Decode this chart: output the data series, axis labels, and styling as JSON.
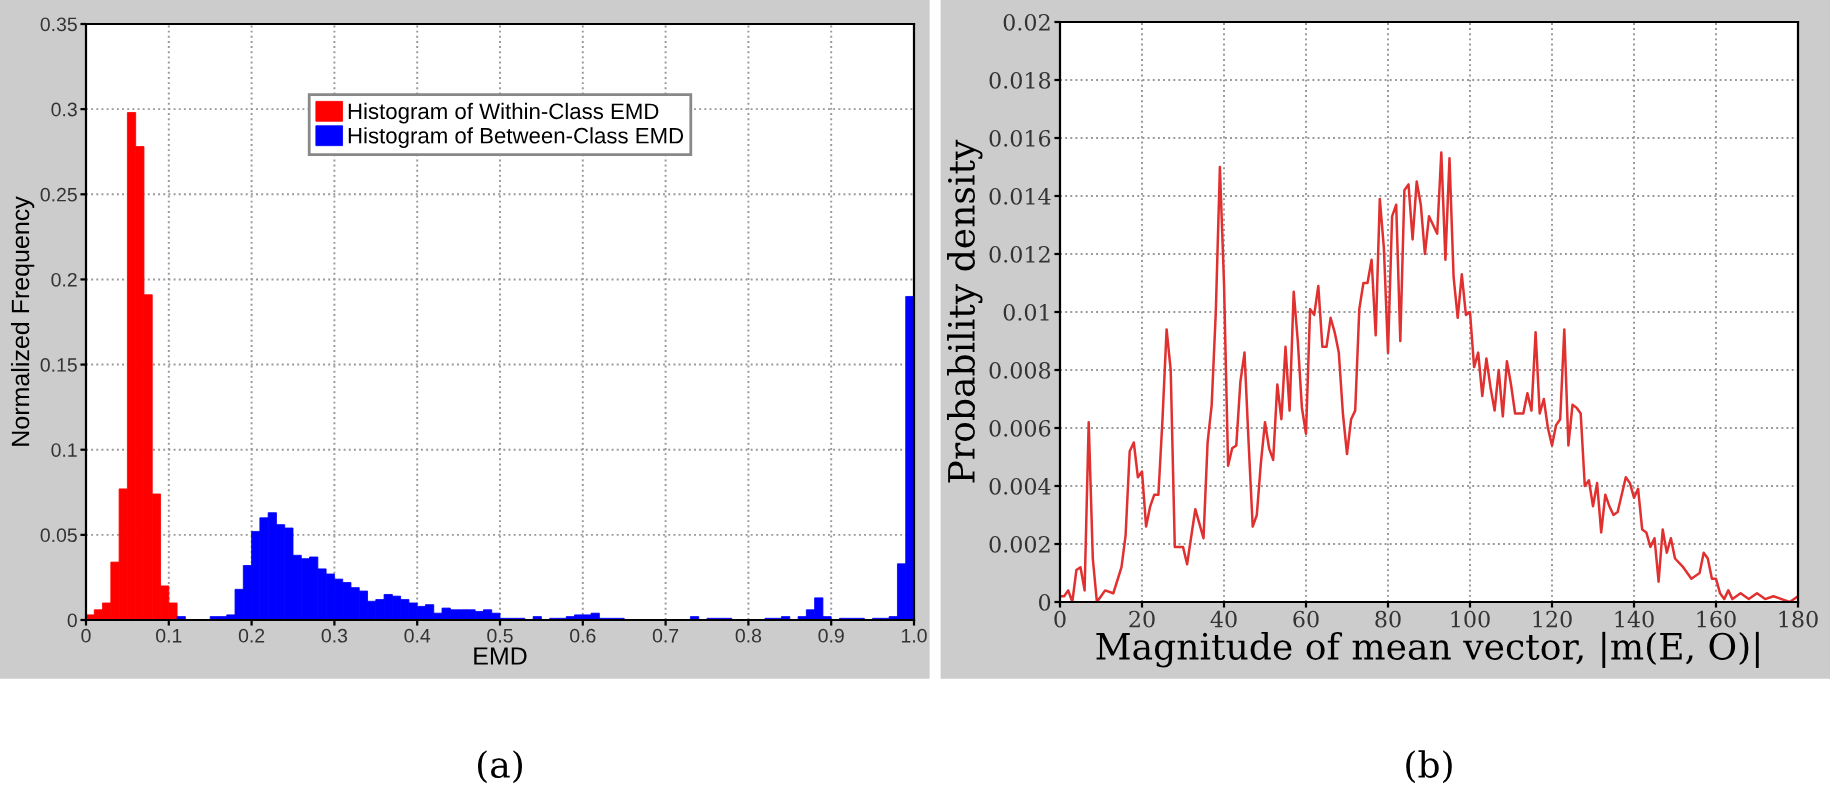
{
  "chart_data": [
    {
      "type": "histogram",
      "xlabel": "EMD",
      "ylabel": "Normalized Frequency",
      "annotations": [
        "(a)"
      ],
      "bins": [
        0,
        0.01,
        0.02,
        0.03,
        0.04,
        0.05,
        0.06,
        0.07,
        0.08,
        0.09,
        0.1,
        0.11,
        0.12,
        0.13,
        0.14,
        0.15,
        0.16,
        0.17,
        0.18,
        0.19,
        0.2,
        0.21,
        0.22,
        0.23,
        0.24,
        0.25,
        0.26,
        0.27,
        0.28,
        0.29,
        0.3,
        0.31,
        0.32,
        0.33,
        0.34,
        0.35,
        0.36,
        0.37,
        0.38,
        0.39,
        0.4,
        0.41,
        0.42,
        0.43,
        0.44,
        0.45,
        0.46,
        0.47,
        0.48,
        0.49,
        0.5,
        0.51,
        0.52,
        0.53,
        0.54,
        0.55,
        0.56,
        0.57,
        0.58,
        0.59,
        0.6,
        0.61,
        0.62,
        0.63,
        0.64,
        0.65,
        0.66,
        0.67,
        0.68,
        0.69,
        0.7,
        0.71,
        0.72,
        0.73,
        0.74,
        0.75,
        0.76,
        0.77,
        0.78,
        0.79,
        0.8,
        0.81,
        0.82,
        0.83,
        0.84,
        0.85,
        0.86,
        0.87,
        0.88,
        0.89,
        0.9,
        0.91,
        0.92,
        0.93,
        0.94,
        0.95,
        0.96,
        0.97,
        0.98,
        0.99,
        1.0
      ],
      "series": [
        {
          "name": "Histogram of Within-Class EMD",
          "color": "#ff0000",
          "values": [
            0.003,
            0.006,
            0.01,
            0.034,
            0.077,
            0.298,
            0.278,
            0.191,
            0.074,
            0.02,
            0.01,
            0,
            0,
            0,
            0,
            0,
            0,
            0,
            0,
            0,
            0,
            0,
            0,
            0,
            0,
            0,
            0,
            0,
            0,
            0,
            0,
            0,
            0,
            0,
            0,
            0,
            0,
            0,
            0,
            0,
            0,
            0,
            0,
            0,
            0,
            0,
            0,
            0,
            0,
            0,
            0,
            0,
            0,
            0,
            0,
            0,
            0,
            0,
            0,
            0,
            0,
            0,
            0,
            0,
            0,
            0,
            0,
            0,
            0,
            0,
            0,
            0,
            0,
            0,
            0,
            0,
            0,
            0,
            0,
            0,
            0,
            0,
            0,
            0,
            0,
            0,
            0,
            0,
            0,
            0,
            0,
            0,
            0,
            0,
            0,
            0,
            0,
            0,
            0,
            0
          ]
        },
        {
          "name": "Histogram of Between-Class EMD",
          "color": "#0000ff",
          "values": [
            0,
            0,
            0,
            0,
            0,
            0,
            null,
            null,
            null,
            null,
            null,
            0.002,
            0,
            0,
            0,
            0.002,
            0.002,
            0.003,
            0.018,
            0.032,
            0.052,
            0.06,
            0.063,
            0.056,
            0.054,
            0.038,
            0.036,
            0.037,
            0.03,
            0.027,
            0.024,
            0.022,
            0.019,
            0.017,
            0.011,
            0.012,
            0.015,
            0.014,
            0.012,
            0.01,
            0.008,
            0.009,
            0.004,
            0.007,
            0.006,
            0.006,
            0.006,
            0.005,
            0.006,
            0.004,
            0.001,
            0.001,
            0.001,
            0,
            0.002,
            0,
            0.001,
            0.001,
            0.002,
            0.003,
            0.003,
            0.004,
            0.001,
            0.001,
            0.001,
            0,
            0,
            0,
            0,
            0,
            0,
            0,
            0,
            0.002,
            0,
            0.001,
            0.001,
            0.001,
            0,
            0,
            0,
            0,
            0.001,
            0.001,
            0.002,
            0,
            0.002,
            0.006,
            0.013,
            0.002,
            0,
            0.001,
            0.001,
            0.001,
            0,
            0.001,
            0.001,
            0.002,
            0.033,
            0.19
          ]
        }
      ],
      "xlim": [
        0,
        1
      ],
      "ylim": [
        0,
        0.35
      ],
      "xticks": [
        0,
        0.1,
        0.2,
        0.3,
        0.4,
        0.5,
        0.6,
        0.7,
        0.8,
        0.9,
        {
          "value": 1,
          "label": "1.0"
        }
      ],
      "yticks": [
        0,
        0.05,
        0.1,
        0.15,
        0.2,
        0.25,
        0.3,
        0.35
      ],
      "grid": true,
      "legend": "top"
    },
    {
      "type": "line",
      "xlabel": "Magnitude of mean vector, |m(E, O)|",
      "ylabel": "Probability density",
      "annotations": [
        "(b)"
      ],
      "x": [
        0,
        1,
        2,
        3,
        4,
        5,
        6,
        7,
        8,
        9,
        10,
        11,
        13,
        15,
        16,
        17,
        18,
        19,
        20,
        21,
        22,
        23,
        24,
        25,
        26,
        27,
        28,
        30,
        31,
        33,
        35,
        36,
        37,
        38,
        39,
        40,
        41,
        42,
        43,
        44,
        45,
        46,
        47,
        48,
        49,
        50,
        51,
        52,
        53,
        54,
        55,
        56,
        57,
        58,
        59,
        60,
        61,
        62,
        63,
        64,
        65,
        66,
        67,
        68,
        69,
        70,
        71,
        72,
        73,
        74,
        75,
        76,
        77,
        78,
        79,
        80,
        81,
        82,
        83,
        84,
        85,
        86,
        87,
        88,
        89,
        90,
        91,
        92,
        93,
        94,
        95,
        96,
        97,
        98,
        99,
        100,
        101,
        102,
        103,
        104,
        105,
        106,
        107,
        108,
        109,
        110,
        111,
        112,
        113,
        114,
        115,
        116,
        117,
        118,
        119,
        120,
        121,
        122,
        123,
        124,
        125,
        126,
        127,
        128,
        129,
        130,
        131,
        132,
        133,
        134,
        135,
        136,
        137,
        138,
        139,
        140,
        141,
        142,
        143,
        144,
        145,
        146,
        147,
        148,
        149,
        150,
        152,
        154,
        156,
        157,
        158,
        159,
        160,
        161,
        162,
        163,
        164,
        166,
        168,
        170,
        172,
        174,
        176,
        178,
        180
      ],
      "series": [
        {
          "color": "#e03030",
          "values": [
            0.0002,
            0.0002,
            0.0004,
            0,
            0.0011,
            0.0012,
            0.0004,
            0.0062,
            0.0015,
            0,
            0.0002,
            0.0004,
            0.0003,
            0.0012,
            0.0023,
            0.0052,
            0.0055,
            0.0043,
            0.0045,
            0.0026,
            0.0033,
            0.0037,
            0.0037,
            0.0063,
            0.0094,
            0.008,
            0.0019,
            0.0019,
            0.0013,
            0.0032,
            0.0022,
            0.0055,
            0.0068,
            0.01,
            0.015,
            0.011,
            0.0047,
            0.0053,
            0.0054,
            0.0076,
            0.0086,
            0.0055,
            0.0026,
            0.003,
            0.0048,
            0.0062,
            0.0053,
            0.0049,
            0.0075,
            0.0063,
            0.0088,
            0.0066,
            0.0107,
            0.009,
            0.0067,
            0.0058,
            0.0101,
            0.0099,
            0.0109,
            0.0088,
            0.0088,
            0.0098,
            0.0093,
            0.0086,
            0.0065,
            0.0051,
            0.0063,
            0.0066,
            0.0101,
            0.011,
            0.011,
            0.0118,
            0.0092,
            0.0139,
            0.0122,
            0.0086,
            0.0133,
            0.0137,
            0.009,
            0.0142,
            0.0144,
            0.0125,
            0.0145,
            0.0137,
            0.012,
            0.0133,
            0.013,
            0.0127,
            0.0155,
            0.0118,
            0.0153,
            0.0112,
            0.0098,
            0.0113,
            0.0099,
            0.01,
            0.0081,
            0.0086,
            0.0071,
            0.0084,
            0.0074,
            0.0066,
            0.008,
            0.0064,
            0.0083,
            0.0075,
            0.0065,
            0.0065,
            0.0065,
            0.0072,
            0.0066,
            0.0093,
            0.0065,
            0.007,
            0.006,
            0.0054,
            0.0061,
            0.0063,
            0.0094,
            0.0054,
            0.0068,
            0.0067,
            0.0065,
            0.004,
            0.0042,
            0.0033,
            0.0041,
            0.0024,
            0.0037,
            0.0033,
            0.003,
            0.0031,
            0.0037,
            0.0043,
            0.0041,
            0.0036,
            0.0039,
            0.0025,
            0.0024,
            0.0019,
            0.0022,
            0.0007,
            0.0025,
            0.0017,
            0.0022,
            0.0015,
            0.0012,
            0.0008,
            0.001,
            0.0017,
            0.0015,
            0.0008,
            0.0008,
            0.0003,
            0.0001,
            0.0004,
            0.0001,
            0.0003,
            0.0001,
            0.0003,
            0.0001,
            0.0002,
            0.0001,
            0,
            0.0002
          ]
        }
      ],
      "xlim": [
        0,
        180
      ],
      "ylim": [
        0,
        0.02
      ],
      "xticks": [
        0,
        20,
        40,
        60,
        80,
        100,
        120,
        140,
        160,
        180
      ],
      "yticks": [
        0,
        0.002,
        0.004,
        0.006,
        0.008,
        0.01,
        0.012,
        0.014,
        0.016,
        0.018,
        0.02
      ],
      "grid": true
    }
  ]
}
